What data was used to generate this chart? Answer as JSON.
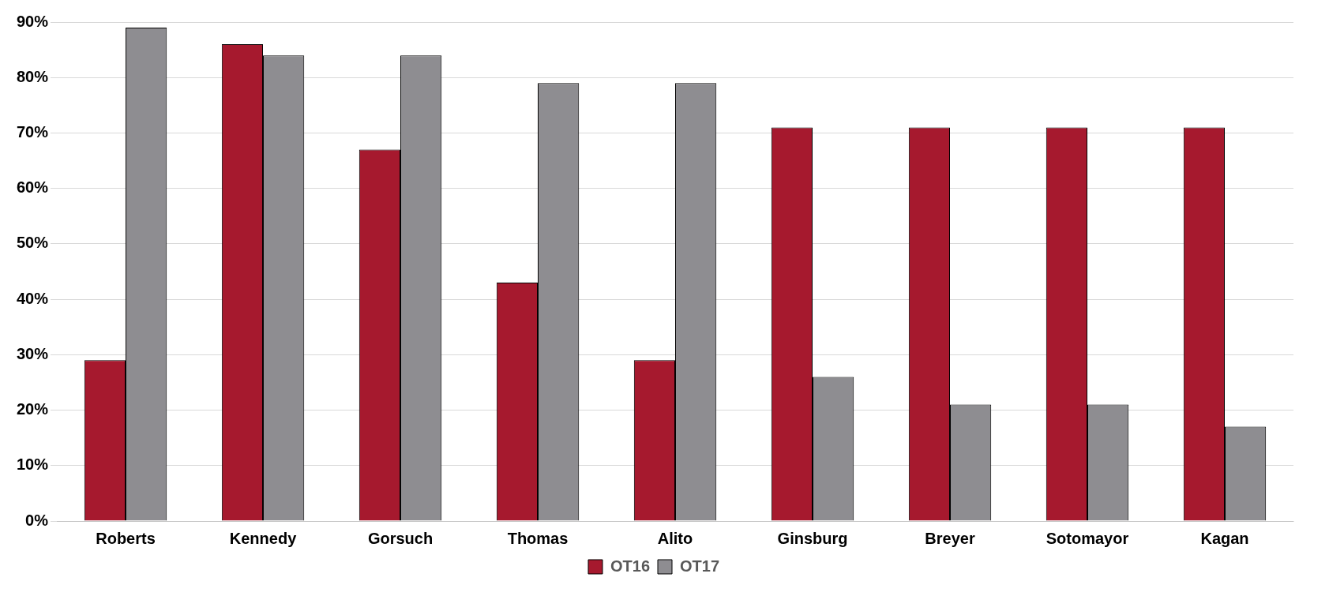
{
  "chart_data": {
    "type": "bar",
    "categories": [
      "Roberts",
      "Kennedy",
      "Gorsuch",
      "Thomas",
      "Alito",
      "Ginsburg",
      "Breyer",
      "Sotomayor",
      "Kagan"
    ],
    "series": [
      {
        "name": "OT16",
        "color": "#a6192e",
        "values": [
          29,
          86,
          67,
          43,
          29,
          71,
          71,
          71,
          71
        ]
      },
      {
        "name": "OT17",
        "color": "#8e8d91",
        "values": [
          89,
          84,
          84,
          79,
          79,
          26,
          21,
          21,
          17
        ]
      }
    ],
    "ylim": [
      0,
      90
    ],
    "yticks": [
      {
        "value": 0,
        "label": "0%"
      },
      {
        "value": 10,
        "label": "10%"
      },
      {
        "value": 20,
        "label": "20%"
      },
      {
        "value": 30,
        "label": "30%"
      },
      {
        "value": 40,
        "label": "40%"
      },
      {
        "value": 50,
        "label": "50%"
      },
      {
        "value": 60,
        "label": "60%"
      },
      {
        "value": 70,
        "label": "70%"
      },
      {
        "value": 80,
        "label": "80%"
      },
      {
        "value": 90,
        "label": "90%"
      }
    ],
    "grid": "y",
    "legend": "bottom"
  }
}
